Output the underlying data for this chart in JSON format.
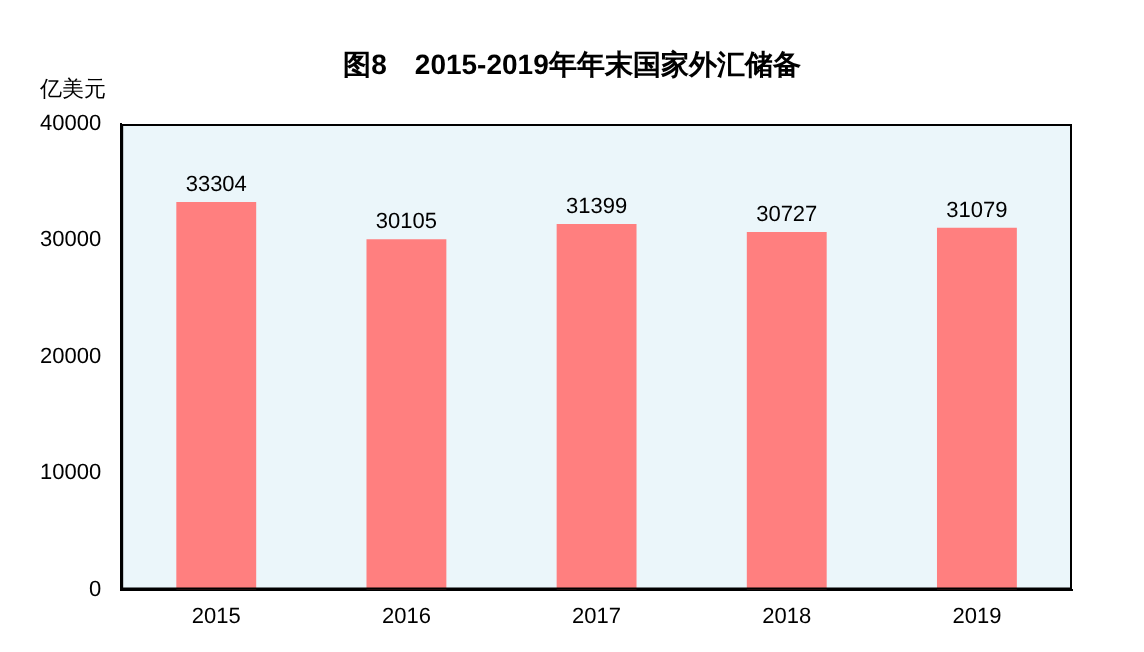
{
  "chart_data": {
    "type": "bar",
    "title": "图8　2015-2019年年末国家外汇储备",
    "ylabel": "亿美元",
    "categories": [
      "2015",
      "2016",
      "2017",
      "2018",
      "2019"
    ],
    "values": [
      33304,
      30105,
      31399,
      30727,
      31079
    ],
    "color": "#ff7f7f",
    "ylim": [
      0,
      40000
    ],
    "yticks": [
      0,
      10000,
      20000,
      30000,
      40000
    ],
    "grid": false,
    "data_labels": true
  }
}
